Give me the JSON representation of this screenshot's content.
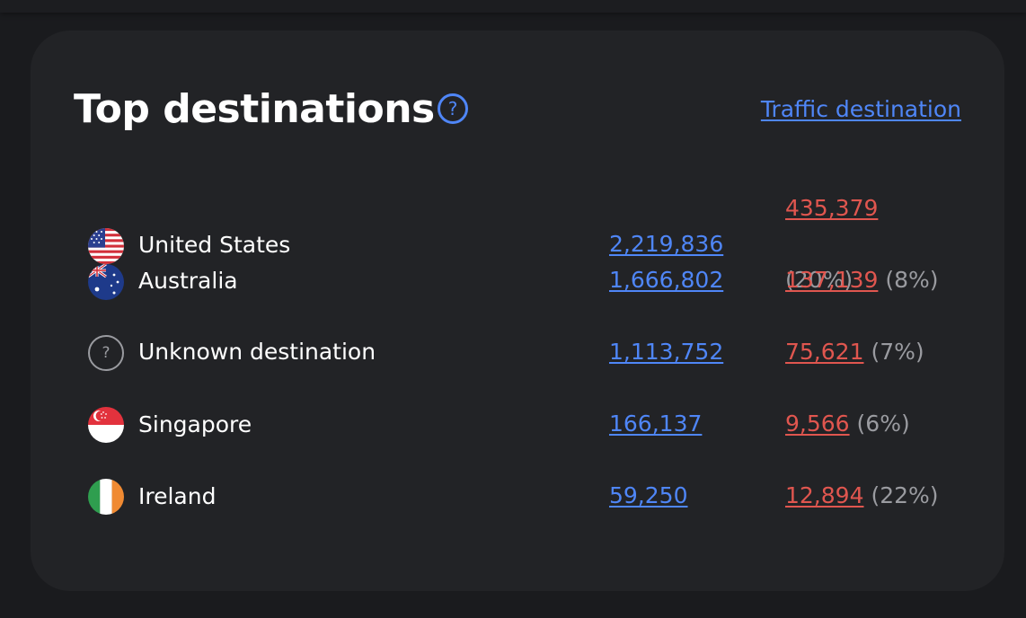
{
  "card": {
    "title": "Top destinations",
    "help_icon": "?",
    "link_label": "Traffic destination"
  },
  "rows": [
    {
      "flag": "us-flag-icon",
      "country": "United States",
      "total": "2,219,836",
      "sub_value": "435,379",
      "sub_pct": "(20%)"
    },
    {
      "flag": "au-flag-icon",
      "country": "Australia",
      "total": "1,666,802",
      "sub_value": "137,139",
      "sub_pct": "(8%)"
    },
    {
      "flag": "unknown-icon",
      "flag_glyph": "?",
      "country": "Unknown destination",
      "total": "1,113,752",
      "sub_value": "75,621",
      "sub_pct": "(7%)"
    },
    {
      "flag": "sg-flag-icon",
      "country": "Singapore",
      "total": "166,137",
      "sub_value": "9,566",
      "sub_pct": "(6%)"
    },
    {
      "flag": "ie-flag-icon",
      "country": "Ireland",
      "total": "59,250",
      "sub_value": "12,894",
      "sub_pct": "(22%)"
    }
  ],
  "colors": {
    "accent_blue": "#4f86f7",
    "accent_red": "#e0564f",
    "muted": "#9a9ba0",
    "card_bg": "#222326"
  }
}
